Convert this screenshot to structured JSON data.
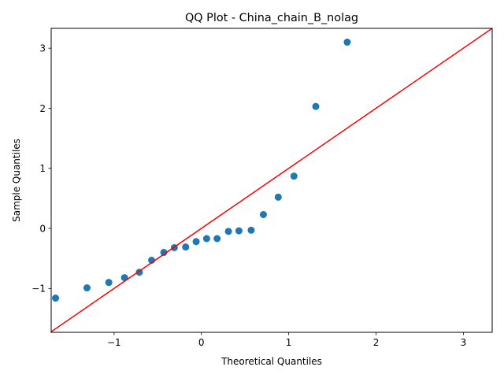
{
  "chart_data": {
    "type": "scatter",
    "title": "QQ Plot - China_chain_B_nolag",
    "xlabel": "Theoretical Quantiles",
    "ylabel": "Sample Quantiles",
    "xlim": [
      -1.72,
      3.33
    ],
    "ylim": [
      -1.73,
      3.33
    ],
    "xticks": [
      -1,
      0,
      1,
      2,
      3
    ],
    "yticks": [
      -1,
      0,
      1,
      2,
      3
    ],
    "grid": false,
    "points": {
      "color": "#1f77b4",
      "x": [
        -1.67,
        -1.31,
        -1.06,
        -0.88,
        -0.71,
        -0.57,
        -0.43,
        -0.31,
        -0.18,
        -0.06,
        0.06,
        0.18,
        0.31,
        0.43,
        0.57,
        0.71,
        0.88,
        1.06,
        1.31,
        1.67
      ],
      "y": [
        -1.16,
        -0.99,
        -0.9,
        -0.82,
        -0.73,
        -0.53,
        -0.4,
        -0.32,
        -0.31,
        -0.22,
        -0.17,
        -0.17,
        -0.05,
        -0.04,
        -0.03,
        0.23,
        0.52,
        0.87,
        2.03,
        3.1
      ]
    },
    "reference_line": {
      "color": "#ff0000",
      "x": [
        -1.72,
        3.33
      ],
      "y": [
        -1.72,
        3.33
      ]
    }
  }
}
